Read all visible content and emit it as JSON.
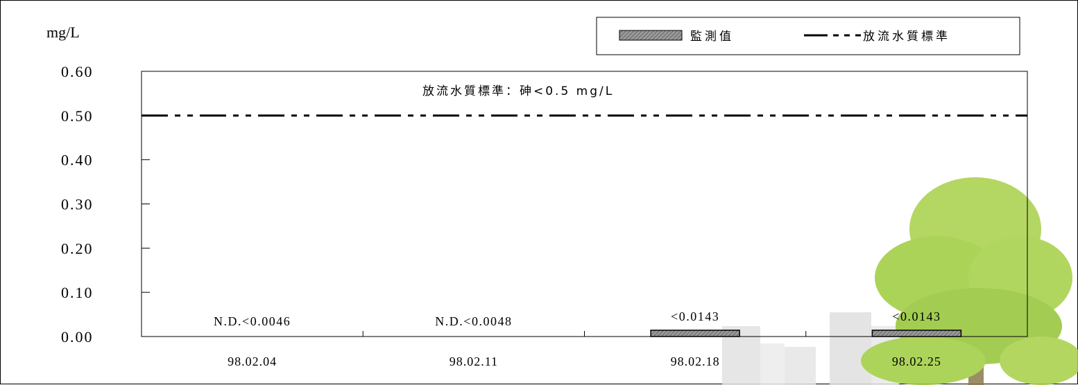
{
  "chart_data": {
    "type": "bar",
    "ylabel": "mg/L",
    "ylim": [
      0,
      0.6
    ],
    "yticks": [
      "0.00",
      "0.10",
      "0.20",
      "0.30",
      "0.40",
      "0.50",
      "0.60"
    ],
    "categories": [
      "98.02.04",
      "98.02.11",
      "98.02.18",
      "98.02.25"
    ],
    "series": [
      {
        "name": "監測值",
        "values": [
          0,
          0,
          0.0143,
          0.0143
        ],
        "labels": [
          "N.D.<0.0046",
          "N.D.<0.0048",
          "<0.0143",
          "<0.0143"
        ]
      }
    ],
    "reference_line": {
      "name": "放流水質標準",
      "value": 0.5
    },
    "annotation": "放流水質標準：砷<0.5 mg/L",
    "legend_position": "top-right",
    "grid": false,
    "colors": {
      "bar_fill": "#8c8c8c",
      "line": "#000000",
      "tree": "#9ccc3c",
      "buildings": "#dcdcdc"
    }
  }
}
